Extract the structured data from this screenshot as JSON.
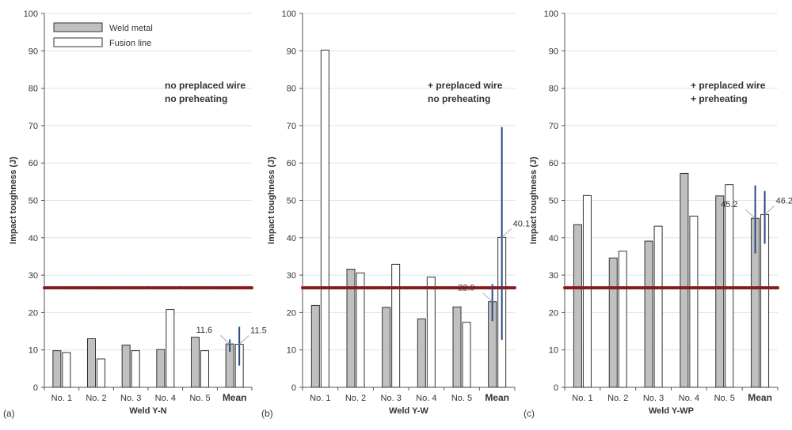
{
  "colors": {
    "weld_metal": "#c0c0c0",
    "fusion_line": "#ffffff",
    "threshold": "#8b1a1a",
    "error_bar": "#2a4a7f"
  },
  "legend": {
    "items": [
      "Weld metal",
      "Fusion line"
    ],
    "placement": "top-left of panel (a)"
  },
  "chart_data": [
    {
      "type": "bar",
      "panel_label": "(a)",
      "xlabel": "Weld Y-N",
      "ylabel": "Impact toughness (J)",
      "ylim": [
        0,
        100
      ],
      "yticks": [
        0,
        10,
        20,
        30,
        40,
        50,
        60,
        70,
        80,
        90,
        100
      ],
      "grid": true,
      "annotation": [
        "no preplaced wire",
        "no preheating"
      ],
      "categories": [
        "No. 1",
        "No. 2",
        "No. 3",
        "No. 4",
        "No. 5",
        "Mean"
      ],
      "series": [
        {
          "name": "Weld metal",
          "values": [
            9.8,
            13.0,
            11.3,
            10.1,
            13.4,
            11.6
          ]
        },
        {
          "name": "Fusion line",
          "values": [
            9.3,
            7.6,
            9.8,
            20.8,
            9.8,
            11.5
          ]
        }
      ],
      "mean_labels": [
        "11.6",
        "11.5"
      ],
      "error_bars": [
        [
          9.5,
          12.8
        ],
        [
          5.8,
          16.2
        ]
      ],
      "threshold": 26.6
    },
    {
      "type": "bar",
      "panel_label": "(b)",
      "xlabel": "Weld Y-W",
      "ylabel": "Impact toughness (J)",
      "ylim": [
        0,
        100
      ],
      "yticks": [
        0,
        10,
        20,
        30,
        40,
        50,
        60,
        70,
        80,
        90,
        100
      ],
      "grid": true,
      "annotation": [
        "+ preplaced wire",
        "no preheating"
      ],
      "categories": [
        "No. 1",
        "No. 2",
        "No. 3",
        "No. 4",
        "No. 5",
        "Mean"
      ],
      "series": [
        {
          "name": "Weld metal",
          "values": [
            21.9,
            31.6,
            21.4,
            18.3,
            21.5,
            22.9
          ]
        },
        {
          "name": "Fusion line",
          "values": [
            90.2,
            30.6,
            32.9,
            29.5,
            17.4,
            40.1
          ]
        }
      ],
      "mean_labels": [
        "22.9",
        "40.1"
      ],
      "error_bars": [
        [
          17.7,
          27.6
        ],
        [
          12.7,
          69.6
        ]
      ],
      "threshold": 26.6
    },
    {
      "type": "bar",
      "panel_label": "(c)",
      "xlabel": "Weld Y-WP",
      "ylabel": "Impact toughness (J)",
      "ylim": [
        0,
        100
      ],
      "yticks": [
        0,
        10,
        20,
        30,
        40,
        50,
        60,
        70,
        80,
        90,
        100
      ],
      "grid": true,
      "annotation": [
        "+ preplaced wire",
        "+ preheating"
      ],
      "categories": [
        "No. 1",
        "No. 2",
        "No. 3",
        "No. 4",
        "No. 5",
        "Mean"
      ],
      "series": [
        {
          "name": "Weld metal",
          "values": [
            43.5,
            34.6,
            39.1,
            57.2,
            51.2,
            45.2
          ]
        },
        {
          "name": "Fusion line",
          "values": [
            51.3,
            36.4,
            43.1,
            45.8,
            54.2,
            46.2
          ]
        }
      ],
      "mean_labels": [
        "45.2",
        "46.2"
      ],
      "error_bars": [
        [
          35.8,
          54.0
        ],
        [
          38.4,
          52.5
        ]
      ],
      "threshold": 26.6
    }
  ]
}
